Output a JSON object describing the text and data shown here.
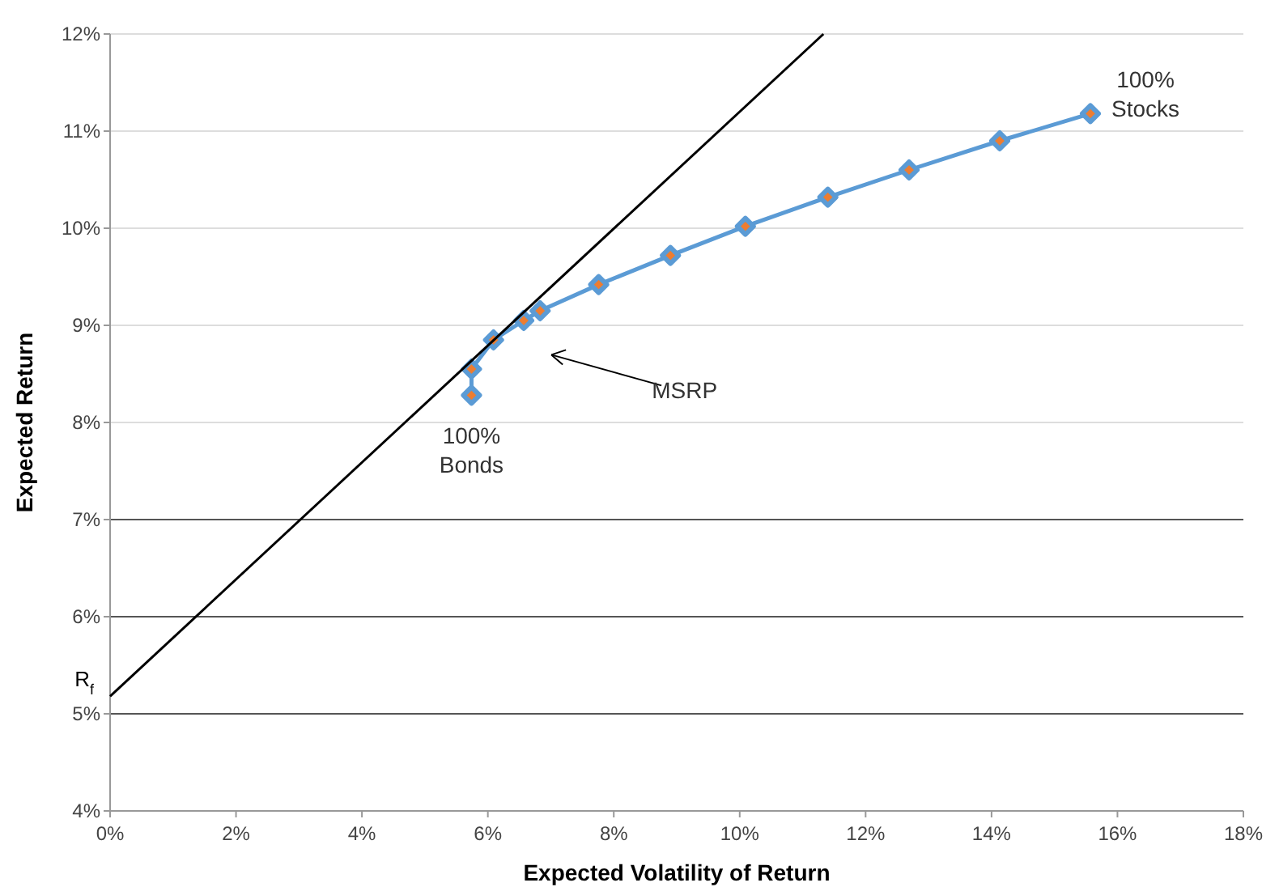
{
  "chart_data": {
    "type": "line",
    "xlabel": "Expected Volatility of Return",
    "ylabel": "Expected Return",
    "xlim": [
      0,
      18
    ],
    "ylim": [
      4,
      12
    ],
    "xticks": [
      {
        "value": 0,
        "label": "0%"
      },
      {
        "value": 2,
        "label": "2%"
      },
      {
        "value": 4,
        "label": "4%"
      },
      {
        "value": 6,
        "label": "6%"
      },
      {
        "value": 8,
        "label": "8%"
      },
      {
        "value": 10,
        "label": "10%"
      },
      {
        "value": 12,
        "label": "12%"
      },
      {
        "value": 14,
        "label": "14%"
      },
      {
        "value": 16,
        "label": "16%"
      },
      {
        "value": 18,
        "label": "18%"
      }
    ],
    "yticks": [
      {
        "value": 4,
        "label": "4%"
      },
      {
        "value": 5,
        "label": "5%"
      },
      {
        "value": 6,
        "label": "6%"
      },
      {
        "value": 7,
        "label": "7%"
      },
      {
        "value": 8,
        "label": "8%"
      },
      {
        "value": 9,
        "label": "9%"
      },
      {
        "value": 10,
        "label": "10%"
      },
      {
        "value": 11,
        "label": "11%"
      },
      {
        "value": 12,
        "label": "12%"
      }
    ],
    "grid": "y",
    "series": [
      {
        "color": "#5b9bd5",
        "marker": "diamond",
        "x": [
          5.74,
          5.74,
          6.09,
          6.57,
          6.83,
          7.76,
          8.9,
          10.09,
          11.4,
          12.69,
          14.13,
          15.57
        ],
        "values": [
          8.28,
          8.55,
          8.85,
          9.05,
          9.15,
          9.42,
          9.72,
          10.02,
          10.32,
          10.6,
          10.9,
          11.18
        ]
      },
      {
        "color": "#000000",
        "marker": "none",
        "x": [
          0,
          11.33
        ],
        "values": [
          5.18,
          12.0
        ]
      }
    ],
    "annotations": [
      {
        "text": "R$_{f}$",
        "x": 0,
        "y": 5.18
      },
      {
        "text": "100%\nBonds",
        "x": 5.74,
        "y": 8.28
      },
      {
        "text": "100%\nStocks",
        "x": 15.57,
        "y": 11.18
      },
      "MSRP"
    ]
  }
}
